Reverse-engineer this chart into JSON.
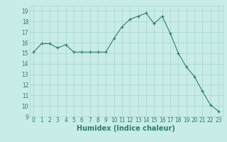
{
  "x": [
    0,
    1,
    2,
    3,
    4,
    5,
    6,
    7,
    8,
    9,
    10,
    11,
    12,
    13,
    14,
    15,
    16,
    17,
    18,
    19,
    20,
    21,
    22,
    23
  ],
  "y": [
    15.1,
    15.9,
    15.9,
    15.5,
    15.8,
    15.1,
    15.1,
    15.1,
    15.1,
    15.1,
    16.4,
    17.5,
    18.2,
    18.5,
    18.8,
    17.8,
    18.5,
    16.9,
    15.0,
    13.7,
    12.8,
    11.4,
    10.1,
    9.5
  ],
  "xlabel": "Humidex (Indice chaleur)",
  "ylim": [
    9,
    19.5
  ],
  "xlim": [
    -0.5,
    23.5
  ],
  "yticks": [
    9,
    10,
    11,
    12,
    13,
    14,
    15,
    16,
    17,
    18,
    19
  ],
  "xticks": [
    0,
    1,
    2,
    3,
    4,
    5,
    6,
    7,
    8,
    9,
    10,
    11,
    12,
    13,
    14,
    15,
    16,
    17,
    18,
    19,
    20,
    21,
    22,
    23
  ],
  "line_color": "#2e7d6e",
  "marker_color": "#2e7d6e",
  "bg_color": "#c8ece8",
  "grid_color": "#a8d5cf",
  "text_color": "#2e7d6e",
  "tick_label_size": 5.5,
  "xlabel_size": 7,
  "xlabel_weight": "bold"
}
